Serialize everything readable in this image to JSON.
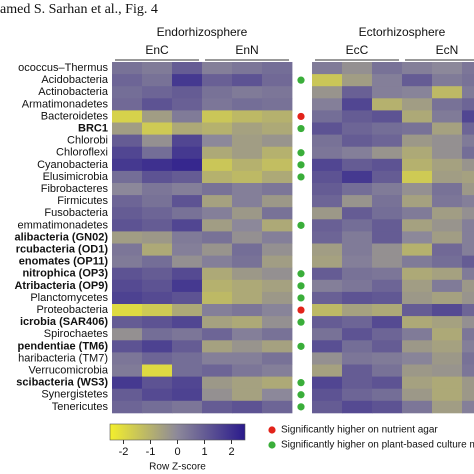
{
  "chart_data": {
    "type": "heatmap",
    "title": "amed S. Sarhan et al., Fig. 4",
    "groups": [
      {
        "label": "Endorhizosphere",
        "subgroups": [
          "EnC",
          "EnN"
        ]
      },
      {
        "label": "Ectorhizosphere",
        "subgroups": [
          "EcC",
          "EcN"
        ]
      }
    ],
    "categories": [
      "ococcus–Thermus",
      "Acidobacteria",
      "Actinobacteria",
      "Armatimonadetes",
      "Bacteroidetes",
      "BRC1",
      "Chlorobi",
      "Chloroflexi",
      "Cyanobacteria",
      "Elusimicrobia",
      "Fibrobacteres",
      "Firmicutes",
      "Fusobacteria",
      "emmatimonadetes",
      "alibacteria (GN02)",
      "rcubacteria (OD1)",
      "enomates (OP11)",
      "nitrophica (OP3)",
      "Atribacteria (OP9)",
      "Planctomycetes",
      "Proteobacteria",
      "icrobia (SAR406)",
      "Spirochaetes",
      "pendentiae (TM6)",
      "haribacteria (TM7)",
      "Verrucomicrobia",
      "scibacteria (WS3)",
      "Synergistetes",
      "Tenericutes"
    ],
    "bold": [
      5,
      14,
      15,
      16,
      17,
      18,
      21,
      23,
      26
    ],
    "values": [
      [
        0.5,
        0.3,
        1.0,
        0.2,
        0.4,
        0.6,
        0.3,
        -0.2,
        0.5,
        0.2,
        0.0,
        0.4
      ],
      [
        0.8,
        0.5,
        1.8,
        0.9,
        1.2,
        0.7,
        -1.5,
        -0.5,
        0.2,
        1.0,
        0.3,
        0.5
      ],
      [
        0.6,
        0.8,
        1.0,
        0.5,
        0.3,
        0.4,
        -0.3,
        0.9,
        0.2,
        0.1,
        -1.2,
        0.3
      ],
      [
        0.7,
        1.2,
        0.9,
        0.4,
        0.6,
        0.5,
        0.2,
        1.5,
        -1.0,
        -0.5,
        0.5,
        0.8
      ],
      [
        -1.8,
        -0.5,
        0.3,
        -1.5,
        -1.2,
        -1.0,
        0.6,
        1.0,
        1.2,
        -0.8,
        0.3,
        1.5
      ],
      [
        -0.5,
        -1.6,
        -0.8,
        -1.0,
        -0.6,
        -0.8,
        1.2,
        0.8,
        0.6,
        0.5,
        -0.6,
        0.8
      ],
      [
        1.0,
        -0.2,
        1.5,
        0.0,
        -0.5,
        -0.3,
        0.5,
        1.0,
        0.8,
        -0.4,
        -0.2,
        0.3
      ],
      [
        1.5,
        0.6,
        1.8,
        -0.8,
        -0.5,
        -1.0,
        0.4,
        0.2,
        -0.3,
        -0.8,
        -0.2,
        0.6
      ],
      [
        1.8,
        2.0,
        2.2,
        -1.5,
        -1.0,
        -1.3,
        1.5,
        1.0,
        1.2,
        -1.0,
        -0.6,
        -0.3
      ],
      [
        0.6,
        1.2,
        1.0,
        -1.0,
        -1.2,
        -0.8,
        1.2,
        1.8,
        1.0,
        -1.6,
        -0.5,
        -0.6
      ],
      [
        0.0,
        0.4,
        0.2,
        0.5,
        0.2,
        0.4,
        1.0,
        0.6,
        0.3,
        -0.2,
        0.5,
        -0.4
      ],
      [
        0.8,
        0.5,
        1.2,
        -0.6,
        0.2,
        -0.4,
        0.8,
        -0.3,
        0.5,
        -0.6,
        0.4,
        0.2
      ],
      [
        1.0,
        0.8,
        0.5,
        0.2,
        -0.4,
        0.5,
        -0.4,
        1.0,
        0.6,
        0.3,
        -0.5,
        -0.2
      ],
      [
        1.2,
        1.0,
        1.5,
        -0.5,
        0.0,
        -0.8,
        0.9,
        0.6,
        1.0,
        -0.6,
        -0.3,
        0.2
      ],
      [
        -0.5,
        -0.4,
        0.3,
        0.5,
        -0.2,
        0.2,
        0.8,
        0.3,
        1.0,
        0.0,
        -0.5,
        0.2
      ],
      [
        0.4,
        -0.8,
        0.2,
        -0.3,
        0.6,
        -0.2,
        -0.5,
        0.3,
        -0.2,
        -1.0,
        0.7,
        0.2
      ],
      [
        0.3,
        0.6,
        -0.2,
        0.2,
        0.5,
        -0.5,
        -0.6,
        0.2,
        -0.2,
        0.3,
        0.6,
        1.0
      ],
      [
        1.2,
        1.0,
        1.4,
        -0.8,
        -0.4,
        -0.2,
        1.0,
        0.5,
        0.4,
        -0.8,
        -0.6,
        0.3
      ],
      [
        1.4,
        1.2,
        1.8,
        -1.0,
        -0.8,
        -0.6,
        0.2,
        0.4,
        0.8,
        -0.5,
        0.3,
        -0.4
      ],
      [
        1.6,
        1.4,
        1.2,
        -1.2,
        -0.8,
        -0.4,
        0.9,
        1.2,
        1.1,
        -0.4,
        -0.6,
        -0.3
      ],
      [
        -2.0,
        -1.6,
        -0.8,
        0.2,
        0.4,
        0.1,
        -1.2,
        -0.6,
        -0.8,
        1.0,
        1.4,
        0.8
      ],
      [
        1.0,
        1.2,
        1.5,
        -0.6,
        -0.8,
        -0.2,
        1.0,
        0.8,
        1.4,
        -0.8,
        -0.6,
        -0.2
      ],
      [
        -0.2,
        0.6,
        0.4,
        0.8,
        0.2,
        0.5,
        0.5,
        1.2,
        0.8,
        0.3,
        -0.8,
        0.4
      ],
      [
        1.2,
        1.6,
        1.0,
        -0.6,
        -0.3,
        -0.6,
        1.3,
        0.6,
        1.0,
        -0.4,
        -0.6,
        0.2
      ],
      [
        0.4,
        0.8,
        0.6,
        0.2,
        0.2,
        0.5,
        -0.2,
        0.4,
        0.3,
        0.1,
        -0.4,
        0.5
      ],
      [
        0.3,
        -2.0,
        0.6,
        0.8,
        0.4,
        0.2,
        -0.6,
        1.0,
        0.5,
        -0.4,
        -0.3,
        0.4
      ],
      [
        1.8,
        1.2,
        1.5,
        -0.4,
        -0.6,
        -0.8,
        1.5,
        1.0,
        1.2,
        -0.6,
        -0.8,
        -0.4
      ],
      [
        1.0,
        1.4,
        1.6,
        -0.2,
        -0.6,
        0.0,
        1.2,
        0.8,
        0.6,
        -0.4,
        -0.8,
        -0.4
      ],
      [
        0.8,
        0.6,
        0.4,
        1.0,
        1.2,
        0.8,
        1.0,
        1.4,
        1.2,
        0.4,
        -0.5,
        0.2
      ]
    ],
    "significance": [
      null,
      1,
      null,
      null,
      0,
      1,
      null,
      1,
      1,
      1,
      null,
      null,
      null,
      1,
      null,
      null,
      null,
      1,
      1,
      1,
      0,
      1,
      null,
      1,
      null,
      null,
      1,
      1,
      1
    ],
    "significance_legend": [
      {
        "label": "Significantly higher on nutrient agar",
        "color": "#e2231a"
      },
      {
        "label": "Significantly higher on plant-based culture m",
        "color": "#3aae3a"
      }
    ],
    "colorscale": [
      "#f3ef2c",
      "#8c889a",
      "#2a1a8c"
    ],
    "colorbar": {
      "title": "Row Z-score",
      "lim": [
        -2.5,
        2.5
      ],
      "ticks": [
        -2,
        -1,
        0,
        1,
        2
      ]
    }
  }
}
